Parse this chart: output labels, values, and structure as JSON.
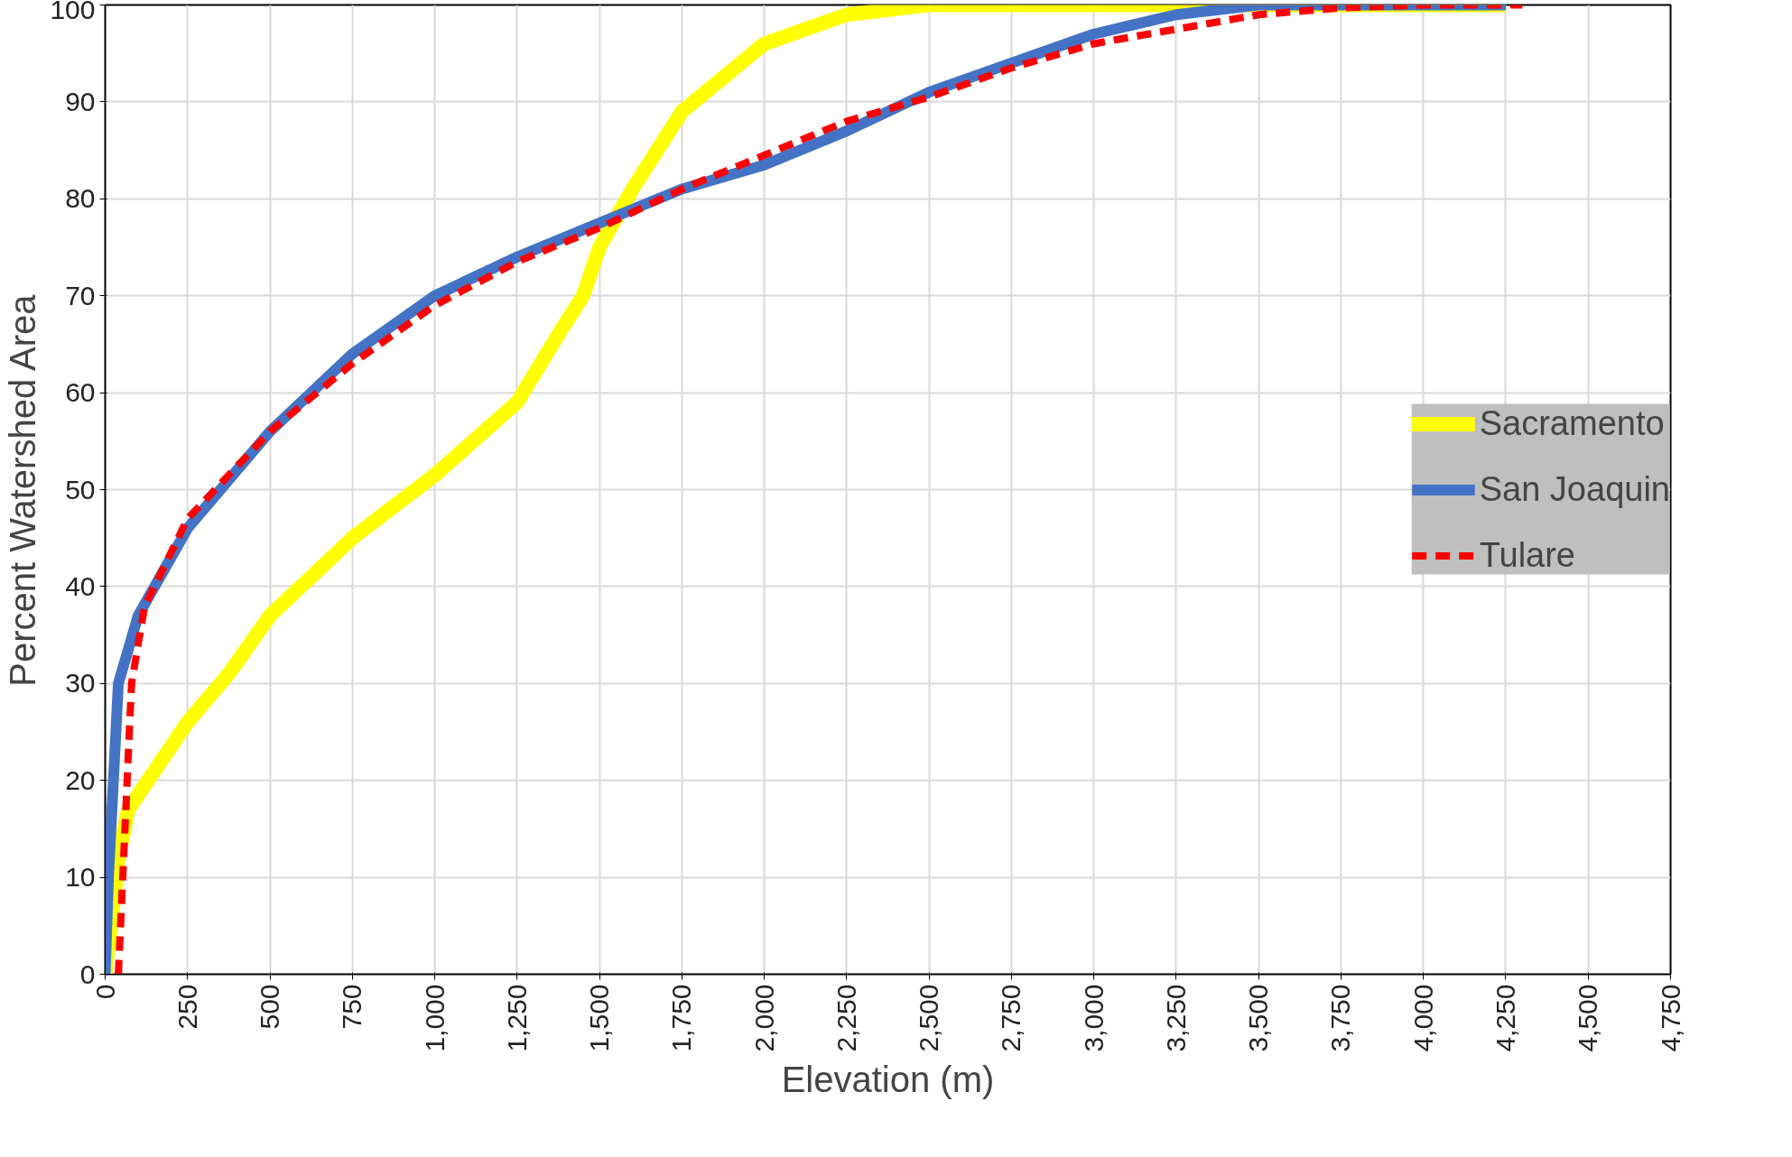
{
  "chart_data": {
    "type": "line",
    "xlabel": "Elevation (m)",
    "ylabel": "Percent Watershed Area",
    "xlim": [
      0,
      4750
    ],
    "ylim": [
      0,
      100
    ],
    "xticks": [
      0,
      250,
      500,
      750,
      {
        "value": 1000,
        "label": "1,000"
      },
      {
        "value": 1250,
        "label": "1,250"
      },
      {
        "value": 1500,
        "label": "1,500"
      },
      {
        "value": 1750,
        "label": "1,750"
      },
      {
        "value": 2000,
        "label": "2,000"
      },
      {
        "value": 2250,
        "label": "2,250"
      },
      {
        "value": 2500,
        "label": "2,500"
      },
      {
        "value": 2750,
        "label": "2,750"
      },
      {
        "value": 3000,
        "label": "3,000"
      },
      {
        "value": 3250,
        "label": "3,250"
      },
      {
        "value": 3500,
        "label": "3,500"
      },
      {
        "value": 3750,
        "label": "3,750"
      },
      {
        "value": 4000,
        "label": "4,000"
      },
      {
        "value": 4250,
        "label": "4,250"
      },
      {
        "value": 4500,
        "label": "4,500"
      },
      {
        "value": 4750,
        "label": "4,750"
      }
    ],
    "yticks": [
      0,
      10,
      20,
      30,
      40,
      50,
      60,
      70,
      80,
      90,
      100
    ],
    "grid": true,
    "legend": "right",
    "series": [
      {
        "name": "Sacramento",
        "color": "#ffff00",
        "line_style": "solid",
        "x": [
          0,
          40,
          70,
          150,
          250,
          375,
          500,
          750,
          1000,
          1250,
          1375,
          1450,
          1500,
          1600,
          1750,
          2000,
          2250,
          2500,
          4250
        ],
        "values": [
          0,
          12,
          17,
          21,
          26,
          31,
          37,
          45,
          51.5,
          59,
          66,
          70,
          75,
          81,
          89,
          96,
          99,
          100,
          100
        ]
      },
      {
        "name": "San Joaquin",
        "color": "#4472c4",
        "line_style": "solid",
        "x": [
          0,
          10,
          40,
          100,
          250,
          500,
          750,
          1000,
          1250,
          1500,
          1750,
          2000,
          2250,
          2500,
          2750,
          3000,
          3250,
          3500,
          4250
        ],
        "values": [
          0,
          10,
          30,
          37,
          46,
          56,
          64,
          70,
          74,
          77.5,
          81,
          83.5,
          87,
          91,
          94,
          97,
          99,
          100,
          100
        ]
      },
      {
        "name": "Tulare",
        "color": "#ff0000",
        "line_style": "dashed",
        "x": [
          40,
          60,
          80,
          120,
          250,
          500,
          750,
          1000,
          1250,
          1500,
          1750,
          2000,
          2250,
          2500,
          2750,
          3000,
          3250,
          3500,
          3750,
          4000,
          4300
        ],
        "values": [
          0,
          15,
          30,
          38,
          47,
          56,
          63,
          69,
          73.5,
          77,
          81,
          84.5,
          88,
          90.5,
          93.5,
          96,
          97.5,
          99,
          99.7,
          100,
          100
        ]
      }
    ]
  }
}
